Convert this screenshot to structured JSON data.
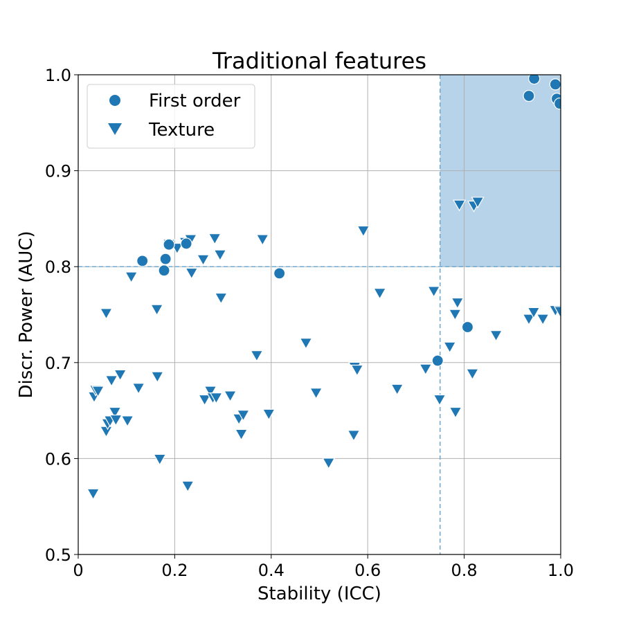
{
  "chart_data": {
    "type": "scatter",
    "title": "Traditional features",
    "xlabel": "Stability (ICC)",
    "ylabel": "Discr. Power (AUC)",
    "xlim": [
      0,
      1.0
    ],
    "ylim": [
      0.5,
      1.0
    ],
    "xticks": [
      "0",
      "0.2",
      "0.4",
      "0.6",
      "0.8",
      "1.0"
    ],
    "yticks": [
      "0.5",
      "0.6",
      "0.7",
      "0.8",
      "0.9",
      "1.0"
    ],
    "grid": true,
    "legend_position": "upper-left",
    "color": "#1f77b4",
    "threshold_lines": {
      "x": 0.75,
      "y": 0.8
    },
    "highlight_region": {
      "x": [
        0.75,
        1.0
      ],
      "y": [
        0.8,
        1.0
      ],
      "color": "#b7d3e9"
    },
    "series": [
      {
        "name": "First order",
        "marker": "circle",
        "points": [
          [
            0.133,
            0.806
          ],
          [
            0.178,
            0.796
          ],
          [
            0.181,
            0.808
          ],
          [
            0.188,
            0.823
          ],
          [
            0.224,
            0.824
          ],
          [
            0.417,
            0.793
          ],
          [
            0.745,
            0.702
          ],
          [
            0.807,
            0.737
          ],
          [
            0.934,
            0.978
          ],
          [
            0.945,
            0.996
          ],
          [
            0.989,
            0.99
          ],
          [
            0.992,
            0.975
          ],
          [
            0.998,
            0.97
          ]
        ]
      },
      {
        "name": "Texture",
        "marker": "triangle-down",
        "points": [
          [
            0.031,
            0.564
          ],
          [
            0.033,
            0.665
          ],
          [
            0.036,
            0.672
          ],
          [
            0.041,
            0.671
          ],
          [
            0.058,
            0.752
          ],
          [
            0.058,
            0.629
          ],
          [
            0.061,
            0.637
          ],
          [
            0.066,
            0.64
          ],
          [
            0.069,
            0.682
          ],
          [
            0.076,
            0.649
          ],
          [
            0.078,
            0.641
          ],
          [
            0.087,
            0.688
          ],
          [
            0.102,
            0.64
          ],
          [
            0.11,
            0.79
          ],
          [
            0.125,
            0.674
          ],
          [
            0.163,
            0.756
          ],
          [
            0.164,
            0.686
          ],
          [
            0.169,
            0.6
          ],
          [
            0.188,
            0.824
          ],
          [
            0.205,
            0.82
          ],
          [
            0.222,
            0.826
          ],
          [
            0.227,
            0.572
          ],
          [
            0.233,
            0.829
          ],
          [
            0.235,
            0.794
          ],
          [
            0.259,
            0.808
          ],
          [
            0.262,
            0.662
          ],
          [
            0.274,
            0.671
          ],
          [
            0.279,
            0.664
          ],
          [
            0.283,
            0.83
          ],
          [
            0.286,
            0.664
          ],
          [
            0.294,
            0.813
          ],
          [
            0.296,
            0.768
          ],
          [
            0.315,
            0.666
          ],
          [
            0.333,
            0.642
          ],
          [
            0.338,
            0.626
          ],
          [
            0.342,
            0.646
          ],
          [
            0.37,
            0.708
          ],
          [
            0.382,
            0.829
          ],
          [
            0.395,
            0.647
          ],
          [
            0.472,
            0.721
          ],
          [
            0.493,
            0.669
          ],
          [
            0.519,
            0.596
          ],
          [
            0.571,
            0.625
          ],
          [
            0.573,
            0.696
          ],
          [
            0.578,
            0.693
          ],
          [
            0.591,
            0.838
          ],
          [
            0.625,
            0.773
          ],
          [
            0.661,
            0.673
          ],
          [
            0.72,
            0.694
          ],
          [
            0.737,
            0.775
          ],
          [
            0.749,
            0.662
          ],
          [
            0.77,
            0.717
          ],
          [
            0.781,
            0.751
          ],
          [
            0.782,
            0.649
          ],
          [
            0.786,
            0.763
          ],
          [
            0.79,
            0.865
          ],
          [
            0.817,
            0.689
          ],
          [
            0.82,
            0.864
          ],
          [
            0.828,
            0.868
          ],
          [
            0.866,
            0.729
          ],
          [
            0.934,
            0.746
          ],
          [
            0.944,
            0.753
          ],
          [
            0.963,
            0.746
          ],
          [
            0.989,
            0.755
          ],
          [
            0.999,
            0.754
          ]
        ]
      }
    ]
  }
}
